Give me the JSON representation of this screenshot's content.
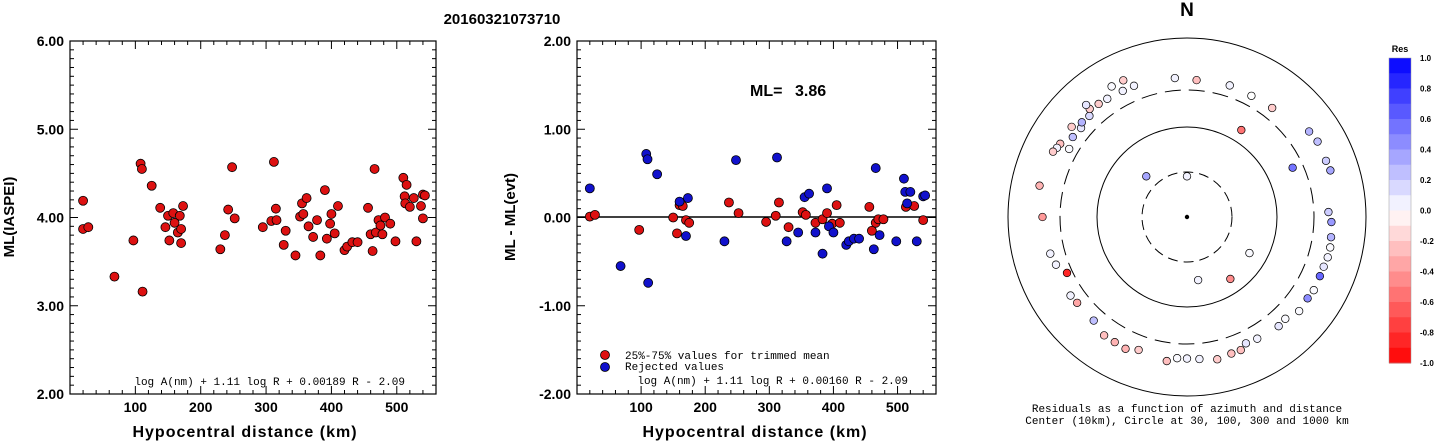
{
  "title": "20160321073710",
  "chart_data": [
    {
      "type": "scatter",
      "xlabel": "Hypocentral distance (km)",
      "ylabel": "ML(IASPEI)",
      "xlim": [
        0,
        560
      ],
      "ylim": [
        2.0,
        6.0
      ],
      "xticks": [
        100,
        200,
        300,
        400,
        500
      ],
      "yticks": [
        "2.00",
        "3.00",
        "4.00",
        "5.00",
        "6.00"
      ],
      "formula": "log A(nm) + 1.11 log R + 0.00189 R - 2.09",
      "point_color": "#dd1111",
      "points": [
        [
          20,
          4.19
        ],
        [
          20,
          3.87
        ],
        [
          28,
          3.89
        ],
        [
          68,
          3.33
        ],
        [
          97,
          3.74
        ],
        [
          108,
          4.61
        ],
        [
          110,
          4.55
        ],
        [
          111,
          3.16
        ],
        [
          125,
          4.36
        ],
        [
          138,
          4.11
        ],
        [
          146,
          3.89
        ],
        [
          150,
          4.02
        ],
        [
          152,
          3.74
        ],
        [
          158,
          4.05
        ],
        [
          160,
          3.94
        ],
        [
          165,
          3.83
        ],
        [
          168,
          4.02
        ],
        [
          170,
          3.71
        ],
        [
          170,
          3.87
        ],
        [
          173,
          4.13
        ],
        [
          230,
          3.64
        ],
        [
          237,
          3.8
        ],
        [
          242,
          4.09
        ],
        [
          248,
          4.57
        ],
        [
          252,
          3.99
        ],
        [
          295,
          3.89
        ],
        [
          308,
          3.96
        ],
        [
          312,
          4.63
        ],
        [
          315,
          4.1
        ],
        [
          316,
          3.97
        ],
        [
          327,
          3.69
        ],
        [
          330,
          3.85
        ],
        [
          345,
          3.57
        ],
        [
          352,
          4.01
        ],
        [
          355,
          4.16
        ],
        [
          357,
          4.04
        ],
        [
          362,
          4.22
        ],
        [
          365,
          3.9
        ],
        [
          372,
          3.78
        ],
        [
          378,
          3.97
        ],
        [
          383,
          3.57
        ],
        [
          390,
          4.31
        ],
        [
          393,
          3.76
        ],
        [
          398,
          3.93
        ],
        [
          400,
          4.04
        ],
        [
          405,
          3.82
        ],
        [
          410,
          4.13
        ],
        [
          420,
          3.63
        ],
        [
          424,
          3.67
        ],
        [
          432,
          3.72
        ],
        [
          440,
          3.72
        ],
        [
          456,
          4.11
        ],
        [
          460,
          3.81
        ],
        [
          463,
          3.62
        ],
        [
          466,
          4.55
        ],
        [
          468,
          3.83
        ],
        [
          472,
          3.97
        ],
        [
          475,
          3.91
        ],
        [
          478,
          3.81
        ],
        [
          482,
          4.0
        ],
        [
          490,
          3.93
        ],
        [
          498,
          3.73
        ],
        [
          510,
          4.45
        ],
        [
          512,
          4.24
        ],
        [
          513,
          4.16
        ],
        [
          515,
          4.37
        ],
        [
          520,
          4.12
        ],
        [
          526,
          4.22
        ],
        [
          530,
          3.73
        ],
        [
          537,
          4.13
        ],
        [
          540,
          4.26
        ],
        [
          540,
          3.99
        ],
        [
          543,
          4.25
        ]
      ]
    },
    {
      "type": "scatter",
      "xlabel": "Hypocentral distance (km)",
      "ylabel": "ML - ML(evt)",
      "xlim": [
        0,
        560
      ],
      "ylim": [
        -2.0,
        2.0
      ],
      "xticks": [
        100,
        200,
        300,
        400,
        500
      ],
      "yticks": [
        "-2.00",
        "-1.00",
        "0.00",
        "1.00",
        "2.00"
      ],
      "annotation_label": "ML=",
      "annotation_value": "3.86",
      "formula": "log A(nm) + 1.11 log R + 0.00160 R - 2.09",
      "legend_position": "bottom-left",
      "series": [
        {
          "name": "25%-75% values for trimmed mean",
          "color": "#dd1111",
          "points": [
            [
              20,
              0.01
            ],
            [
              28,
              0.03
            ],
            [
              97,
              -0.14
            ],
            [
              150,
              0.0
            ],
            [
              156,
              -0.18
            ],
            [
              160,
              0.14
            ],
            [
              165,
              0.13
            ],
            [
              170,
              -0.03
            ],
            [
              175,
              -0.06
            ],
            [
              237,
              0.17
            ],
            [
              252,
              0.05
            ],
            [
              295,
              -0.05
            ],
            [
              310,
              0.02
            ],
            [
              315,
              0.17
            ],
            [
              330,
              -0.11
            ],
            [
              352,
              0.06
            ],
            [
              357,
              0.03
            ],
            [
              372,
              -0.06
            ],
            [
              383,
              -0.02
            ],
            [
              390,
              0.05
            ],
            [
              398,
              -0.07
            ],
            [
              405,
              0.14
            ],
            [
              410,
              -0.06
            ],
            [
              456,
              0.12
            ],
            [
              460,
              -0.15
            ],
            [
              466,
              -0.06
            ],
            [
              470,
              -0.02
            ],
            [
              478,
              -0.02
            ],
            [
              513,
              0.12
            ],
            [
              526,
              0.13
            ],
            [
              540,
              -0.03
            ]
          ]
        },
        {
          "name": "Rejected values",
          "color": "#1111cc",
          "points": [
            [
              20,
              0.33
            ],
            [
              68,
              -0.55
            ],
            [
              108,
              0.72
            ],
            [
              110,
              0.66
            ],
            [
              111,
              -0.74
            ],
            [
              125,
              0.49
            ],
            [
              160,
              0.18
            ],
            [
              170,
              -0.21
            ],
            [
              173,
              0.22
            ],
            [
              230,
              -0.27
            ],
            [
              248,
              0.65
            ],
            [
              312,
              0.68
            ],
            [
              327,
              -0.27
            ],
            [
              345,
              -0.17
            ],
            [
              355,
              0.23
            ],
            [
              362,
              0.27
            ],
            [
              372,
              -0.17
            ],
            [
              383,
              -0.41
            ],
            [
              390,
              0.33
            ],
            [
              393,
              -0.1
            ],
            [
              400,
              -0.17
            ],
            [
              420,
              -0.31
            ],
            [
              424,
              -0.27
            ],
            [
              432,
              -0.24
            ],
            [
              440,
              -0.24
            ],
            [
              463,
              -0.36
            ],
            [
              466,
              0.56
            ],
            [
              472,
              -0.2
            ],
            [
              498,
              -0.27
            ],
            [
              510,
              0.44
            ],
            [
              512,
              0.29
            ],
            [
              515,
              0.16
            ],
            [
              520,
              0.29
            ],
            [
              530,
              -0.27
            ],
            [
              540,
              0.24
            ],
            [
              543,
              0.25
            ]
          ]
        }
      ]
    },
    {
      "type": "polar_scatter",
      "north_label": "N",
      "caption_line1": "Residuals as a function of azimuth and distance",
      "caption_line2": "Center (10km), Circle at 30, 100, 300 and 1000 km",
      "colorbar_title": "Res",
      "colorbar_ticks": [
        "1.0",
        "0.8",
        "0.6",
        "0.4",
        "0.2",
        "0.0",
        "-0.2",
        "-0.4",
        "-0.6",
        "-0.8",
        "-1.0"
      ],
      "colorbar_range": [
        -1.0,
        1.0
      ],
      "rings_km": [
        30,
        100,
        300,
        1000
      ],
      "points": [
        [
          0,
          27,
          0.05
        ],
        [
          315,
          42,
          0.35
        ],
        [
          170,
          50,
          0.05
        ],
        [
          120,
          62,
          0.02
        ],
        [
          145,
          68,
          -0.45
        ],
        [
          32,
          145,
          -0.55
        ],
        [
          65,
          220,
          0.55
        ],
        [
          355,
          400,
          0.05
        ],
        [
          4,
          380,
          -0.25
        ],
        [
          18,
          390,
          0.05
        ],
        [
          28,
          380,
          0.0
        ],
        [
          38,
          390,
          -0.2
        ],
        [
          300,
          370,
          0.02
        ],
        [
          310,
          390,
          0.1
        ],
        [
          316,
          410,
          0.15
        ],
        [
          322,
          440,
          -0.2
        ],
        [
          326,
          430,
          0.05
        ],
        [
          333,
          420,
          0.05
        ],
        [
          338,
          420,
          0.05
        ],
        [
          305,
          400,
          0.25
        ],
        [
          312,
          420,
          0.3
        ],
        [
          318,
          460,
          -0.2
        ],
        [
          308,
          470,
          -0.2
        ],
        [
          300,
          470,
          -0.25
        ],
        [
          298,
          480,
          0.05
        ],
        [
          296,
          500,
          -0.2
        ],
        [
          282,
          520,
          -0.3
        ],
        [
          318,
          520,
          0.1
        ],
        [
          330,
          520,
          0.02
        ],
        [
          335,
          520,
          -0.2
        ],
        [
          55,
          500,
          0.3
        ],
        [
          60,
          520,
          0.25
        ],
        [
          68,
          510,
          0.2
        ],
        [
          72,
          520,
          0.35
        ],
        [
          88,
          420,
          0.2
        ],
        [
          92,
          450,
          0.4
        ],
        [
          98,
          460,
          0.3
        ],
        [
          102,
          470,
          0.02
        ],
        [
          106,
          470,
          0.05
        ],
        [
          110,
          460,
          0.1
        ],
        [
          114,
          460,
          0.6
        ],
        [
          120,
          470,
          0.02
        ],
        [
          124,
          460,
          0.45
        ],
        [
          130,
          470,
          0.02
        ],
        [
          136,
          420,
          0.02
        ],
        [
          140,
          430,
          0.1
        ],
        [
          150,
          410,
          0.05
        ],
        [
          155,
          400,
          0.1
        ],
        [
          158,
          440,
          -0.25
        ],
        [
          162,
          440,
          -0.25
        ],
        [
          168,
          460,
          -0.2
        ],
        [
          175,
          430,
          0.05
        ],
        [
          180,
          420,
          0.05
        ],
        [
          184,
          420,
          0.02
        ],
        [
          188,
          460,
          -0.25
        ],
        [
          200,
          420,
          -0.2
        ],
        [
          205,
          460,
          -0.3
        ],
        [
          210,
          450,
          -0.3
        ],
        [
          215,
          450,
          -0.25
        ],
        [
          222,
          400,
          0.25
        ],
        [
          232,
          400,
          -0.35
        ],
        [
          236,
          410,
          0.05
        ],
        [
          245,
          340,
          -0.85
        ],
        [
          250,
          400,
          0.05
        ],
        [
          255,
          420,
          0.05
        ],
        [
          270,
          450,
          -0.4
        ]
      ]
    }
  ]
}
